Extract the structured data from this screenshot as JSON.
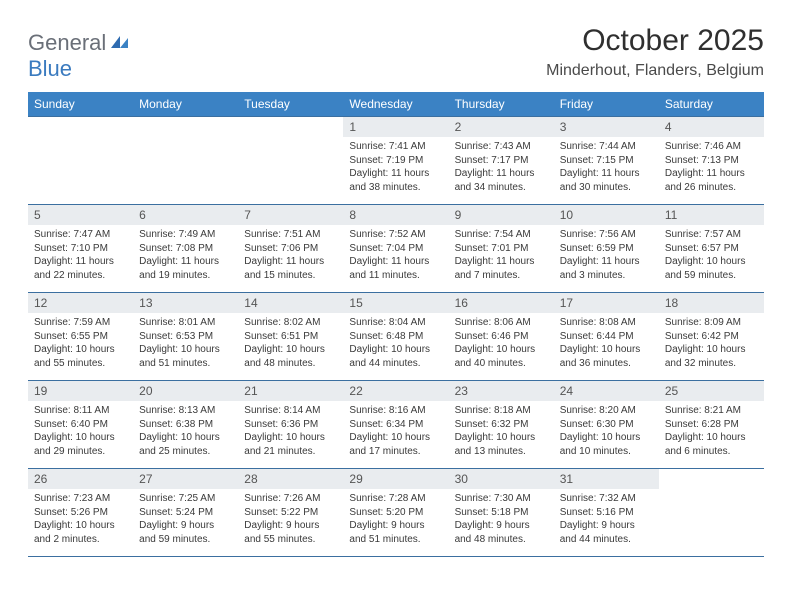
{
  "logo": {
    "text1": "General",
    "text2": "Blue"
  },
  "title": "October 2025",
  "location": "Minderhout, Flanders, Belgium",
  "dayHeaders": [
    "Sunday",
    "Monday",
    "Tuesday",
    "Wednesday",
    "Thursday",
    "Friday",
    "Saturday"
  ],
  "colors": {
    "header_bg": "#3b82c4",
    "header_text": "#ffffff",
    "daynum_bg": "#e9ecef",
    "row_border": "#3b6fa0",
    "logo_gray": "#6a6f78",
    "logo_blue": "#3b7bbf"
  },
  "typography": {
    "title_fontsize": 30,
    "location_fontsize": 16,
    "header_fontsize": 12,
    "daynum_fontsize": 12,
    "content_fontsize": 10
  },
  "weeks": [
    [
      null,
      null,
      null,
      {
        "n": "1",
        "sr": "Sunrise: 7:41 AM",
        "ss": "Sunset: 7:19 PM",
        "dl1": "Daylight: 11 hours",
        "dl2": "and 38 minutes."
      },
      {
        "n": "2",
        "sr": "Sunrise: 7:43 AM",
        "ss": "Sunset: 7:17 PM",
        "dl1": "Daylight: 11 hours",
        "dl2": "and 34 minutes."
      },
      {
        "n": "3",
        "sr": "Sunrise: 7:44 AM",
        "ss": "Sunset: 7:15 PM",
        "dl1": "Daylight: 11 hours",
        "dl2": "and 30 minutes."
      },
      {
        "n": "4",
        "sr": "Sunrise: 7:46 AM",
        "ss": "Sunset: 7:13 PM",
        "dl1": "Daylight: 11 hours",
        "dl2": "and 26 minutes."
      }
    ],
    [
      {
        "n": "5",
        "sr": "Sunrise: 7:47 AM",
        "ss": "Sunset: 7:10 PM",
        "dl1": "Daylight: 11 hours",
        "dl2": "and 22 minutes."
      },
      {
        "n": "6",
        "sr": "Sunrise: 7:49 AM",
        "ss": "Sunset: 7:08 PM",
        "dl1": "Daylight: 11 hours",
        "dl2": "and 19 minutes."
      },
      {
        "n": "7",
        "sr": "Sunrise: 7:51 AM",
        "ss": "Sunset: 7:06 PM",
        "dl1": "Daylight: 11 hours",
        "dl2": "and 15 minutes."
      },
      {
        "n": "8",
        "sr": "Sunrise: 7:52 AM",
        "ss": "Sunset: 7:04 PM",
        "dl1": "Daylight: 11 hours",
        "dl2": "and 11 minutes."
      },
      {
        "n": "9",
        "sr": "Sunrise: 7:54 AM",
        "ss": "Sunset: 7:01 PM",
        "dl1": "Daylight: 11 hours",
        "dl2": "and 7 minutes."
      },
      {
        "n": "10",
        "sr": "Sunrise: 7:56 AM",
        "ss": "Sunset: 6:59 PM",
        "dl1": "Daylight: 11 hours",
        "dl2": "and 3 minutes."
      },
      {
        "n": "11",
        "sr": "Sunrise: 7:57 AM",
        "ss": "Sunset: 6:57 PM",
        "dl1": "Daylight: 10 hours",
        "dl2": "and 59 minutes."
      }
    ],
    [
      {
        "n": "12",
        "sr": "Sunrise: 7:59 AM",
        "ss": "Sunset: 6:55 PM",
        "dl1": "Daylight: 10 hours",
        "dl2": "and 55 minutes."
      },
      {
        "n": "13",
        "sr": "Sunrise: 8:01 AM",
        "ss": "Sunset: 6:53 PM",
        "dl1": "Daylight: 10 hours",
        "dl2": "and 51 minutes."
      },
      {
        "n": "14",
        "sr": "Sunrise: 8:02 AM",
        "ss": "Sunset: 6:51 PM",
        "dl1": "Daylight: 10 hours",
        "dl2": "and 48 minutes."
      },
      {
        "n": "15",
        "sr": "Sunrise: 8:04 AM",
        "ss": "Sunset: 6:48 PM",
        "dl1": "Daylight: 10 hours",
        "dl2": "and 44 minutes."
      },
      {
        "n": "16",
        "sr": "Sunrise: 8:06 AM",
        "ss": "Sunset: 6:46 PM",
        "dl1": "Daylight: 10 hours",
        "dl2": "and 40 minutes."
      },
      {
        "n": "17",
        "sr": "Sunrise: 8:08 AM",
        "ss": "Sunset: 6:44 PM",
        "dl1": "Daylight: 10 hours",
        "dl2": "and 36 minutes."
      },
      {
        "n": "18",
        "sr": "Sunrise: 8:09 AM",
        "ss": "Sunset: 6:42 PM",
        "dl1": "Daylight: 10 hours",
        "dl2": "and 32 minutes."
      }
    ],
    [
      {
        "n": "19",
        "sr": "Sunrise: 8:11 AM",
        "ss": "Sunset: 6:40 PM",
        "dl1": "Daylight: 10 hours",
        "dl2": "and 29 minutes."
      },
      {
        "n": "20",
        "sr": "Sunrise: 8:13 AM",
        "ss": "Sunset: 6:38 PM",
        "dl1": "Daylight: 10 hours",
        "dl2": "and 25 minutes."
      },
      {
        "n": "21",
        "sr": "Sunrise: 8:14 AM",
        "ss": "Sunset: 6:36 PM",
        "dl1": "Daylight: 10 hours",
        "dl2": "and 21 minutes."
      },
      {
        "n": "22",
        "sr": "Sunrise: 8:16 AM",
        "ss": "Sunset: 6:34 PM",
        "dl1": "Daylight: 10 hours",
        "dl2": "and 17 minutes."
      },
      {
        "n": "23",
        "sr": "Sunrise: 8:18 AM",
        "ss": "Sunset: 6:32 PM",
        "dl1": "Daylight: 10 hours",
        "dl2": "and 13 minutes."
      },
      {
        "n": "24",
        "sr": "Sunrise: 8:20 AM",
        "ss": "Sunset: 6:30 PM",
        "dl1": "Daylight: 10 hours",
        "dl2": "and 10 minutes."
      },
      {
        "n": "25",
        "sr": "Sunrise: 8:21 AM",
        "ss": "Sunset: 6:28 PM",
        "dl1": "Daylight: 10 hours",
        "dl2": "and 6 minutes."
      }
    ],
    [
      {
        "n": "26",
        "sr": "Sunrise: 7:23 AM",
        "ss": "Sunset: 5:26 PM",
        "dl1": "Daylight: 10 hours",
        "dl2": "and 2 minutes."
      },
      {
        "n": "27",
        "sr": "Sunrise: 7:25 AM",
        "ss": "Sunset: 5:24 PM",
        "dl1": "Daylight: 9 hours",
        "dl2": "and 59 minutes."
      },
      {
        "n": "28",
        "sr": "Sunrise: 7:26 AM",
        "ss": "Sunset: 5:22 PM",
        "dl1": "Daylight: 9 hours",
        "dl2": "and 55 minutes."
      },
      {
        "n": "29",
        "sr": "Sunrise: 7:28 AM",
        "ss": "Sunset: 5:20 PM",
        "dl1": "Daylight: 9 hours",
        "dl2": "and 51 minutes."
      },
      {
        "n": "30",
        "sr": "Sunrise: 7:30 AM",
        "ss": "Sunset: 5:18 PM",
        "dl1": "Daylight: 9 hours",
        "dl2": "and 48 minutes."
      },
      {
        "n": "31",
        "sr": "Sunrise: 7:32 AM",
        "ss": "Sunset: 5:16 PM",
        "dl1": "Daylight: 9 hours",
        "dl2": "and 44 minutes."
      },
      null
    ]
  ]
}
